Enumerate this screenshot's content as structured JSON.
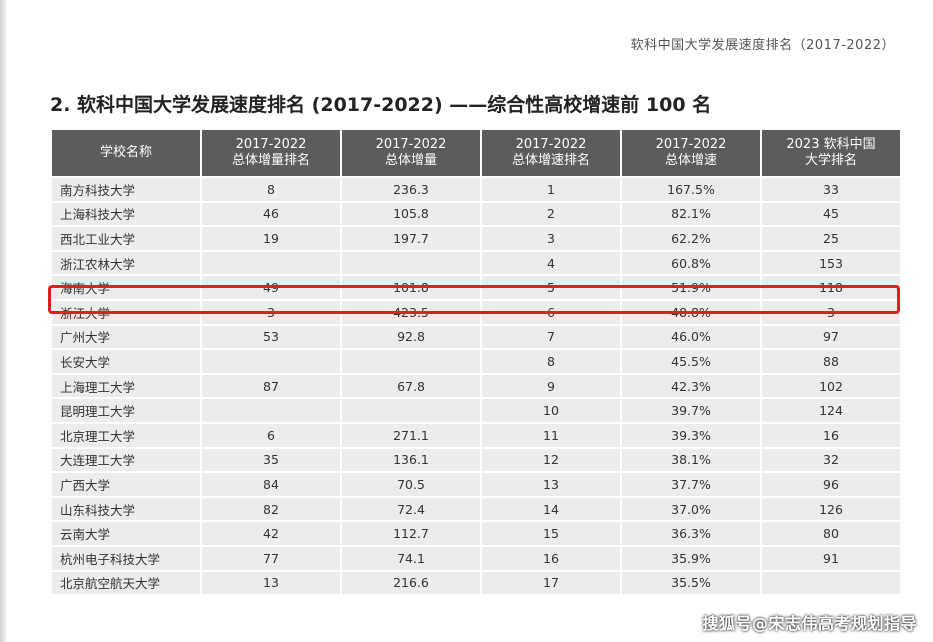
{
  "header": {
    "running_title": "软科中国大学发展速度排名（2017-2022）"
  },
  "section_title": "2. 软科中国大学发展速度排名 (2017-2022) ——综合性高校增速前 100 名",
  "table": {
    "headers": [
      [
        "学校名称"
      ],
      [
        "2017-2022",
        "总体增量排名"
      ],
      [
        "2017-2022",
        "总体增量"
      ],
      [
        "2017-2022",
        "总体增速排名"
      ],
      [
        "2017-2022",
        "总体增速"
      ],
      [
        "2023 软科中国",
        "大学排名"
      ]
    ],
    "rows": [
      [
        "南方科技大学",
        "8",
        "236.3",
        "1",
        "167.5%",
        "33"
      ],
      [
        "上海科技大学",
        "46",
        "105.8",
        "2",
        "82.1%",
        "45"
      ],
      [
        "西北工业大学",
        "19",
        "197.7",
        "3",
        "62.2%",
        "25"
      ],
      [
        "浙江农林大学",
        "",
        "",
        "4",
        "60.8%",
        "153"
      ],
      [
        "海南大学",
        "49",
        "101.8",
        "5",
        "51.9%",
        "118"
      ],
      [
        "浙江大学",
        "3",
        "423.5",
        "6",
        "48.8%",
        "3"
      ],
      [
        "广州大学",
        "53",
        "92.8",
        "7",
        "46.0%",
        "97"
      ],
      [
        "长安大学",
        "",
        "",
        "8",
        "45.5%",
        "88"
      ],
      [
        "上海理工大学",
        "87",
        "67.8",
        "9",
        "42.3%",
        "102"
      ],
      [
        "昆明理工大学",
        "",
        "",
        "10",
        "39.7%",
        "124"
      ],
      [
        "北京理工大学",
        "6",
        "271.1",
        "11",
        "39.3%",
        "16"
      ],
      [
        "大连理工大学",
        "35",
        "136.1",
        "12",
        "38.1%",
        "32"
      ],
      [
        "广西大学",
        "84",
        "70.5",
        "13",
        "37.7%",
        "96"
      ],
      [
        "山东科技大学",
        "82",
        "72.4",
        "14",
        "37.0%",
        "126"
      ],
      [
        "云南大学",
        "42",
        "112.7",
        "15",
        "36.3%",
        "80"
      ],
      [
        "杭州电子科技大学",
        "77",
        "74.1",
        "16",
        "35.9%",
        "91"
      ],
      [
        "北京航空航天大学",
        "13",
        "216.6",
        "17",
        "35.5%",
        ""
      ]
    ]
  },
  "watermark": "搜狐号@宋志伟高考规划指导",
  "colors": {
    "header_bg": "#5c5c5c",
    "cell_bg": "#ececec",
    "highlight": "#e02020"
  }
}
